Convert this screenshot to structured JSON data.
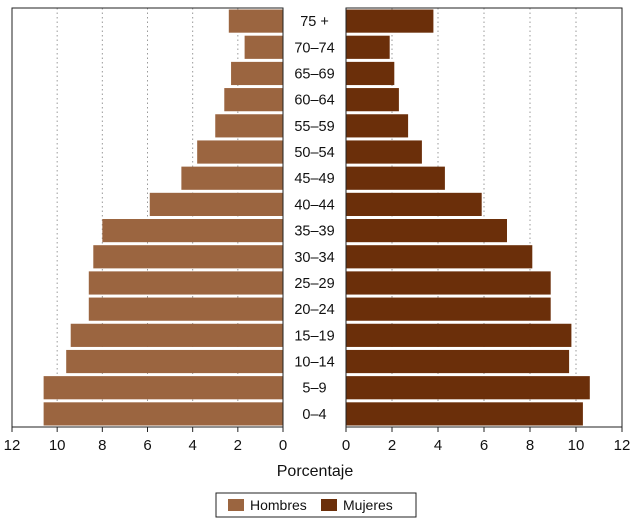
{
  "chart_data": {
    "type": "bar",
    "orientation": "horizontal",
    "layout": "population-pyramid",
    "categories": [
      "0–4",
      "5–9",
      "10–14",
      "15–19",
      "20–24",
      "25–29",
      "30–34",
      "35–39",
      "40–44",
      "45–49",
      "50–54",
      "55–59",
      "60–64",
      "65–69",
      "70–74",
      "75 +"
    ],
    "series": [
      {
        "name": "Hombres",
        "color": "#9b6540",
        "side": "left",
        "values": [
          10.6,
          10.6,
          9.6,
          9.4,
          8.6,
          8.6,
          8.4,
          8.0,
          5.9,
          4.5,
          3.8,
          3.0,
          2.6,
          2.3,
          1.7,
          2.4
        ]
      },
      {
        "name": "Mujeres",
        "color": "#6b2f0a",
        "side": "right",
        "values": [
          10.3,
          10.6,
          9.7,
          9.8,
          8.9,
          8.9,
          8.1,
          7.0,
          5.9,
          4.3,
          3.3,
          2.7,
          2.3,
          2.1,
          1.9,
          3.8
        ]
      }
    ],
    "xlabel": "Porcentaje",
    "xlim": [
      0,
      12
    ],
    "xticks": [
      "0",
      "2",
      "4",
      "6",
      "8",
      "10",
      "12"
    ],
    "grid": true,
    "legend_position": "bottom-center"
  }
}
